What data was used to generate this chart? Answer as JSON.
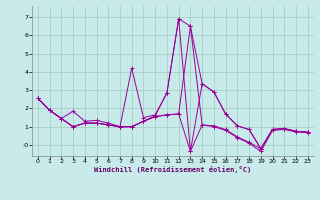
{
  "xlabel": "Windchill (Refroidissement éolien,°C)",
  "bg_color": "#c8eaea",
  "grid_color": "#a0ccbb",
  "line_color": "#990099",
  "xlim": [
    -0.5,
    23.5
  ],
  "ylim": [
    -0.6,
    7.6
  ],
  "yticks": [
    0,
    1,
    2,
    3,
    4,
    5,
    6,
    7
  ],
  "ytick_labels": [
    "-0",
    "1",
    "2",
    "3",
    "4",
    "5",
    "6",
    "7"
  ],
  "xticks": [
    0,
    1,
    2,
    3,
    4,
    5,
    6,
    7,
    8,
    9,
    10,
    11,
    12,
    13,
    14,
    15,
    16,
    17,
    18,
    19,
    20,
    21,
    22,
    23
  ],
  "series": [
    {
      "x": [
        0,
        1,
        2,
        3,
        4,
        5,
        6,
        7,
        8,
        9,
        10,
        11,
        12,
        13,
        14,
        15,
        16,
        17,
        18,
        19,
        20,
        21,
        22,
        23
      ],
      "y": [
        2.55,
        1.9,
        1.45,
        1.85,
        1.3,
        1.35,
        1.2,
        1.0,
        4.2,
        1.5,
        1.65,
        2.85,
        6.9,
        6.5,
        1.1,
        1.05,
        0.85,
        0.45,
        0.15,
        -0.2,
        0.85,
        0.9,
        0.75,
        0.7
      ]
    },
    {
      "x": [
        0,
        1,
        2,
        3,
        4,
        5,
        6,
        7,
        8,
        9,
        10,
        11,
        12,
        13,
        14,
        15,
        16,
        17,
        18,
        19,
        20,
        21,
        22,
        23
      ],
      "y": [
        2.55,
        1.9,
        1.45,
        1.0,
        1.2,
        1.2,
        1.1,
        1.0,
        1.0,
        1.3,
        1.6,
        2.85,
        6.9,
        -0.35,
        3.35,
        2.9,
        1.7,
        1.05,
        0.85,
        -0.2,
        0.85,
        0.9,
        0.75,
        0.7
      ]
    },
    {
      "x": [
        0,
        1,
        2,
        3,
        4,
        5,
        6,
        7,
        8,
        9,
        10,
        11,
        12,
        13,
        14,
        15,
        16,
        17,
        18,
        19,
        20,
        21,
        22,
        23
      ],
      "y": [
        2.55,
        1.9,
        1.45,
        1.0,
        1.2,
        1.2,
        1.1,
        1.0,
        1.0,
        1.3,
        1.55,
        1.65,
        1.7,
        6.5,
        3.35,
        2.9,
        1.7,
        1.05,
        0.85,
        -0.2,
        0.85,
        0.9,
        0.75,
        0.7
      ]
    },
    {
      "x": [
        0,
        1,
        2,
        3,
        4,
        5,
        6,
        7,
        8,
        9,
        10,
        11,
        12,
        13,
        14,
        15,
        16,
        17,
        18,
        19,
        20,
        21,
        22,
        23
      ],
      "y": [
        2.55,
        1.9,
        1.45,
        1.0,
        1.2,
        1.2,
        1.1,
        1.0,
        1.0,
        1.3,
        1.55,
        1.65,
        1.7,
        -0.35,
        1.1,
        1.0,
        0.8,
        0.4,
        0.1,
        -0.35,
        0.8,
        0.85,
        0.72,
        0.68
      ]
    }
  ]
}
